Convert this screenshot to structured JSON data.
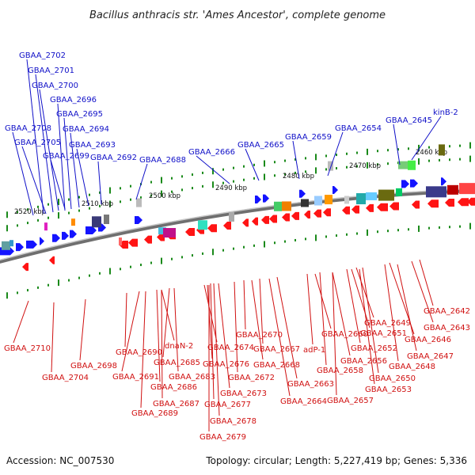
{
  "title": "Bacillus anthracis str. 'Ames Ancestor', complete genome",
  "footer": {
    "accession": "Accession: NC_007530",
    "summary": "Topology: circular; Length: 5,227,419 bp; Genes: 5,336"
  },
  "colors": {
    "forward_gene": "#1414ff",
    "reverse_gene": "#ff1414",
    "top_label": "#1010c8",
    "bottom_label": "#d01010",
    "tick": "#1a8a1a",
    "backbone": "#888888"
  },
  "ticks": [
    {
      "label": "2520 kbp"
    },
    {
      "label": "2510 kbp"
    },
    {
      "label": "2500 kbp"
    },
    {
      "label": "2490 kbp"
    },
    {
      "label": "2480 kbp"
    },
    {
      "label": "2470 kbp"
    },
    {
      "label": "2460 kbp"
    }
  ],
  "top_labels": [
    "GBAA_2702",
    "GBAA_2701",
    "GBAA_2700",
    "GBAA_2696",
    "GBAA_2695",
    "GBAA_2708",
    "GBAA_2694",
    "GBAA_2705",
    "GBAA_2693",
    "GBAA_2699",
    "GBAA_2692",
    "GBAA_2688",
    "GBAA_2666",
    "GBAA_2665",
    "GBAA_2659",
    "GBAA_2654",
    "GBAA_2645",
    "kinB-2"
  ],
  "bottom_labels": [
    "GBAA_2710",
    "GBAA_2704",
    "GBAA_2698",
    "GBAA_2690",
    "GBAA_2691",
    "dnaN-2",
    "GBAA_2685",
    "GBAA_2683",
    "GBAA_2686",
    "GBAA_2687",
    "GBAA_2689",
    "GBAA_2674",
    "GBAA_2676",
    "GBAA_2673",
    "GBAA_2677",
    "GBAA_2678",
    "GBAA_2679",
    "GBAA_2670",
    "GBAA_2672",
    "GBAA_2667",
    "GBAA_2668",
    "GBAA_2663",
    "GBAA_2664",
    "GBAA_2660",
    "adP-1",
    "GBAA_2656",
    "GBAA_2658",
    "GBAA_2657",
    "GBAA_2649",
    "GBAA_2651",
    "GBAA_2652",
    "GBAA_2650",
    "GBAA_2653",
    "GBAA_2646",
    "GBAA_2647",
    "GBAA_2648",
    "GBAA_2643",
    "GBAA_2642"
  ]
}
